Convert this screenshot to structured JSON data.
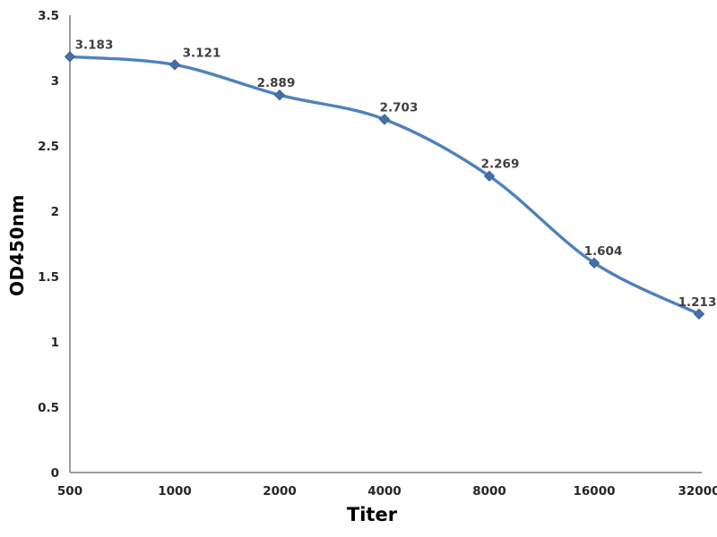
{
  "chart_data": {
    "type": "line",
    "categories": [
      "500",
      "1000",
      "2000",
      "4000",
      "8000",
      "16000",
      "32000"
    ],
    "values": [
      3.183,
      3.121,
      2.889,
      2.703,
      2.269,
      1.604,
      1.213
    ],
    "point_labels": [
      "3.183",
      "3.121",
      "2.889",
      "2.703",
      "2.269",
      "1.604",
      "1.213"
    ],
    "title": "",
    "xlabel": "Titer",
    "ylabel": "OD450nm",
    "ylim": [
      0,
      3.5
    ],
    "ytick_labels": [
      "0",
      "0.5",
      "1",
      "1.5",
      "2",
      "2.5",
      "3",
      "3.5"
    ],
    "grid": false,
    "legend": "none",
    "smooth": true,
    "marker": "diamond",
    "colors": {
      "line": "#4f81bd",
      "marker_fill": "#4472a8",
      "marker_stroke": "#3a5f8f",
      "axis": "#9d9d9d",
      "tick_label": "#262626",
      "data_label": "#3f3f3f",
      "axis_title": "#000000",
      "background": "#ffffff"
    }
  }
}
